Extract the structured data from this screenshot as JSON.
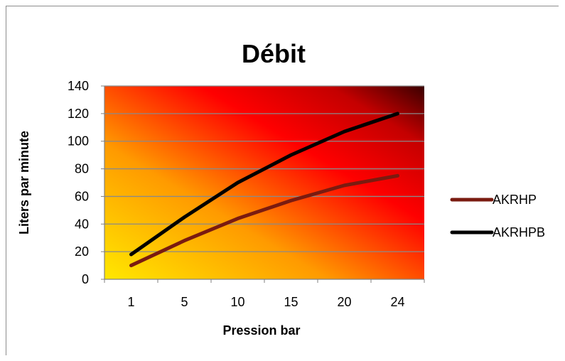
{
  "chart_data": {
    "type": "line",
    "title": "Débit",
    "xlabel": "Pression bar",
    "ylabel": "Liters par minute",
    "categories": [
      "1",
      "5",
      "10",
      "15",
      "20",
      "24"
    ],
    "ylim": [
      0,
      140
    ],
    "yticks": [
      0,
      20,
      40,
      60,
      80,
      100,
      120,
      140
    ],
    "grid": true,
    "legend_position": "right",
    "series": [
      {
        "name": "AKRHP",
        "color": "#7a1b10",
        "values": [
          10,
          28,
          44,
          57,
          68,
          75
        ]
      },
      {
        "name": "AKRHPB",
        "color": "#000000",
        "values": [
          18,
          45,
          70,
          90,
          107,
          120
        ]
      }
    ]
  }
}
